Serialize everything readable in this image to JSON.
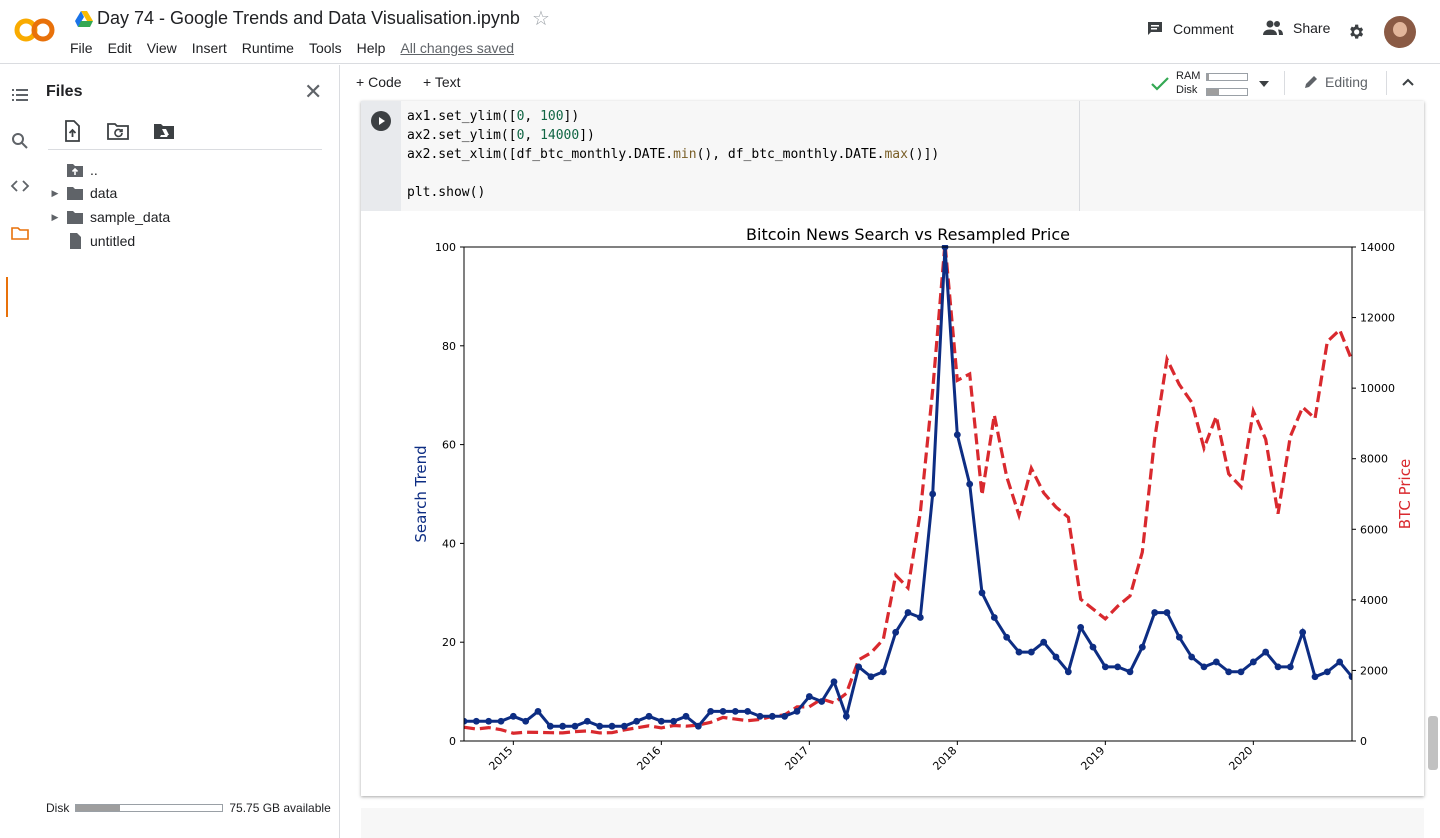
{
  "header": {
    "title": "Day 74 - Google Trends and Data Visualisation.ipynb",
    "menu": [
      "File",
      "Edit",
      "View",
      "Insert",
      "Runtime",
      "Tools",
      "Help"
    ],
    "save_status": "All changes saved",
    "comment_label": "Comment",
    "share_label": "Share"
  },
  "files_panel": {
    "title": "Files",
    "items": [
      {
        "label": "..",
        "icon": "folder-up-icon"
      },
      {
        "label": "data",
        "icon": "folder-icon"
      },
      {
        "label": "sample_data",
        "icon": "folder-icon"
      },
      {
        "label": "untitled",
        "icon": "file-icon"
      }
    ],
    "disk_label": "Disk",
    "disk_available": "75.75 GB available",
    "disk_used_fraction": 0.3
  },
  "toolbar": {
    "code_label": "Code",
    "text_label": "Text",
    "ram_label": "RAM",
    "disk_label": "Disk",
    "ram_fraction": 0.05,
    "disk_fraction": 0.3,
    "editing_label": "Editing"
  },
  "code": {
    "lines": [
      "ax1.set_ylim([0, 100])",
      "ax2.set_ylim([0, 14000])",
      "ax2.set_xlim([df_btc_monthly.DATE.min(), df_btc_monthly.DATE.max()])",
      "",
      "plt.show()"
    ]
  },
  "chart_data": {
    "type": "line",
    "title": "Bitcoin News Search vs Resampled Price",
    "ylabel_left": "Search Trend",
    "ylabel_right": "BTC Price",
    "ylim_left": [
      0,
      100
    ],
    "ylim_right": [
      0,
      14000
    ],
    "xlim": [
      "2014-09",
      "2020-09"
    ],
    "x_ticks": [
      "2015",
      "2016",
      "2017",
      "2018",
      "2019",
      "2020"
    ],
    "left_ticks": [
      "0",
      "20",
      "40",
      "60",
      "80",
      "100"
    ],
    "right_ticks": [
      "0",
      "2000",
      "4000",
      "6000",
      "8000",
      "10000",
      "12000",
      "14000"
    ],
    "colors": {
      "search": "#0d2d83",
      "price": "#d9292e"
    },
    "x": [
      "2014-09",
      "2014-10",
      "2014-11",
      "2014-12",
      "2015-01",
      "2015-02",
      "2015-03",
      "2015-04",
      "2015-05",
      "2015-06",
      "2015-07",
      "2015-08",
      "2015-09",
      "2015-10",
      "2015-11",
      "2015-12",
      "2016-01",
      "2016-02",
      "2016-03",
      "2016-04",
      "2016-05",
      "2016-06",
      "2016-07",
      "2016-08",
      "2016-09",
      "2016-10",
      "2016-11",
      "2016-12",
      "2017-01",
      "2017-02",
      "2017-03",
      "2017-04",
      "2017-05",
      "2017-06",
      "2017-07",
      "2017-08",
      "2017-09",
      "2017-10",
      "2017-11",
      "2017-12",
      "2018-01",
      "2018-02",
      "2018-03",
      "2018-04",
      "2018-05",
      "2018-06",
      "2018-07",
      "2018-08",
      "2018-09",
      "2018-10",
      "2018-11",
      "2018-12",
      "2019-01",
      "2019-02",
      "2019-03",
      "2019-04",
      "2019-05",
      "2019-06",
      "2019-07",
      "2019-08",
      "2019-09",
      "2019-10",
      "2019-11",
      "2019-12",
      "2020-01",
      "2020-02",
      "2020-03",
      "2020-04",
      "2020-05",
      "2020-06",
      "2020-07",
      "2020-08",
      "2020-09"
    ],
    "series": [
      {
        "name": "Search Trend",
        "axis": "left",
        "style": "solid-markers",
        "values": [
          4,
          4,
          4,
          4,
          5,
          4,
          6,
          3,
          3,
          3,
          4,
          3,
          3,
          3,
          4,
          5,
          4,
          4,
          5,
          3,
          6,
          6,
          6,
          6,
          5,
          5,
          5,
          6,
          9,
          8,
          12,
          5,
          15,
          13,
          14,
          22,
          26,
          25,
          50,
          100,
          62,
          52,
          30,
          25,
          21,
          18,
          18,
          20,
          17,
          14,
          23,
          19,
          15,
          15,
          14,
          19,
          26,
          26,
          21,
          17,
          15,
          16,
          14,
          14,
          16,
          18,
          15,
          15,
          22,
          13,
          14,
          16,
          13
        ]
      },
      {
        "name": "BTC Price",
        "axis": "right",
        "style": "dashed",
        "values": [
          390,
          340,
          380,
          320,
          220,
          250,
          245,
          235,
          230,
          265,
          285,
          230,
          235,
          315,
          375,
          430,
          370,
          440,
          420,
          450,
          530,
          670,
          620,
          575,
          610,
          700,
          740,
          965,
          970,
          1190,
          1080,
          1350,
          2300,
          2500,
          2880,
          4700,
          4340,
          6470,
          9950,
          14100,
          10220,
          10400,
          6970,
          9240,
          7490,
          6400,
          7730,
          7030,
          6630,
          6340,
          4020,
          3740,
          3460,
          3820,
          4110,
          5350,
          8570,
          10820,
          10100,
          9600,
          8300,
          9200,
          7570,
          7200,
          9350,
          8550,
          6440,
          8630,
          9460,
          9140,
          11320,
          11650,
          10780
        ]
      }
    ]
  }
}
